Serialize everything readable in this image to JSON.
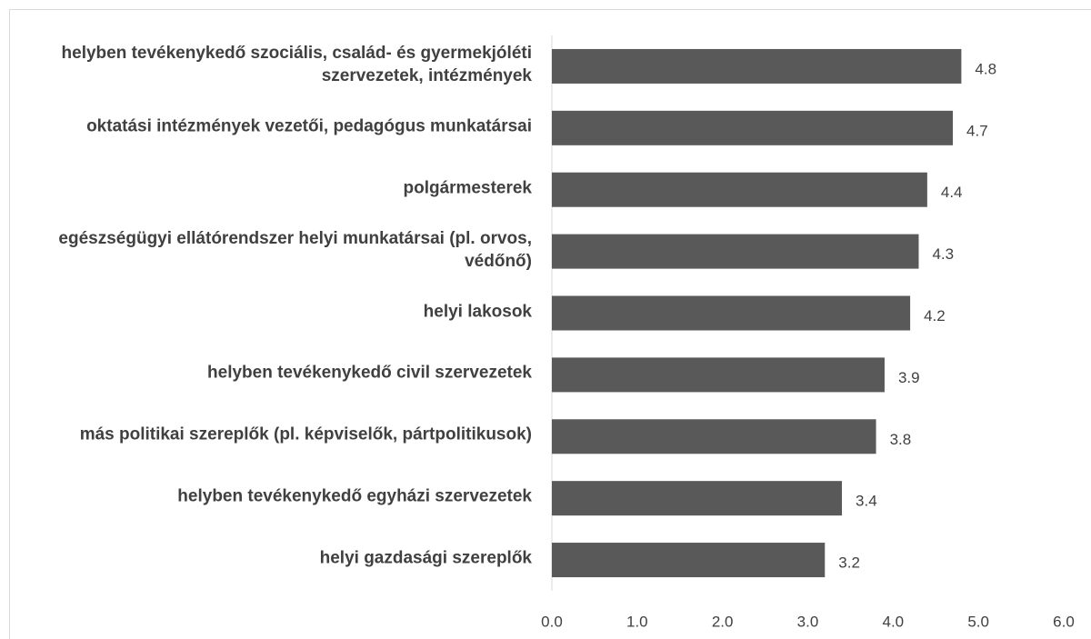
{
  "chart_data": {
    "type": "bar",
    "orientation": "horizontal",
    "categories": [
      "helyben tevékenykedő szociális, család- és gyermekjóléti szervezetek, intézmények",
      "oktatási intézmények vezetői, pedagógus munkatársai",
      "polgármesterek",
      "egészségügyi ellátórendszer helyi munkatársai (pl. orvos, védőnő)",
      "helyi lakosok",
      "helyben tevékenykedő civil szervezetek",
      "más politikai szereplők (pl. képviselők, pártpolitikusok)",
      "helyben tevékenykedő egyházi szervezetek",
      "helyi gazdasági szereplők"
    ],
    "values": [
      4.8,
      4.7,
      4.4,
      4.3,
      4.2,
      3.9,
      3.8,
      3.4,
      3.2
    ],
    "color": "#595959",
    "xlim": [
      0,
      6
    ],
    "xticks": [
      {
        "value": 0,
        "label": "0.0"
      },
      {
        "value": 1,
        "label": "1.0"
      },
      {
        "value": 2,
        "label": "2.0"
      },
      {
        "value": 3,
        "label": "3.0"
      },
      {
        "value": 4,
        "label": "4.0"
      },
      {
        "value": 5,
        "label": "5.0"
      },
      {
        "value": 6,
        "label": "6.0"
      }
    ],
    "grid": false
  }
}
